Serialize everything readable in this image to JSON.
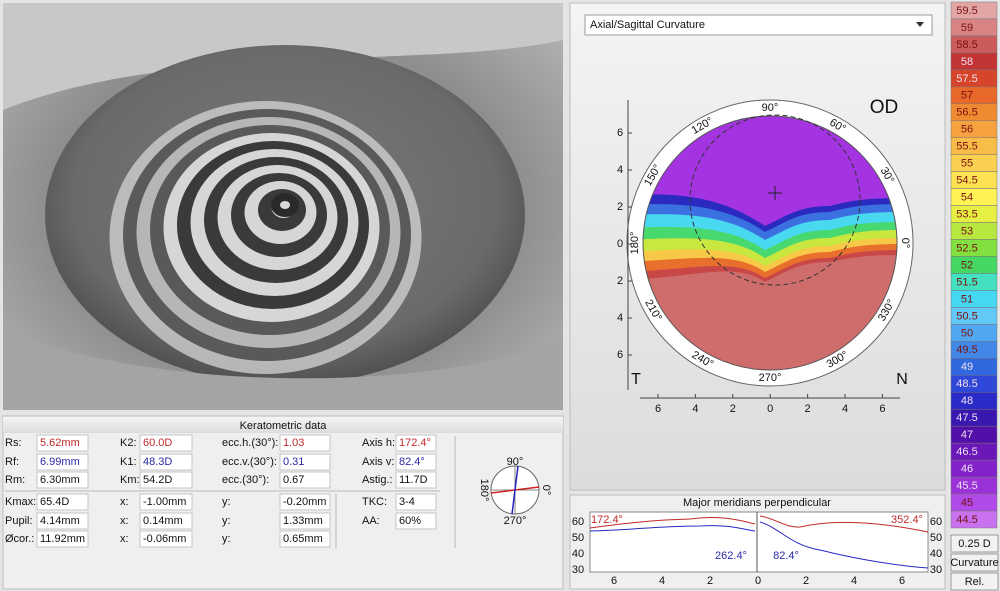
{
  "keratometric": {
    "title": "Keratometric data",
    "rows": [
      [
        {
          "label": "Rs:",
          "value": "5.62mm",
          "tone": "red"
        },
        {
          "label": "K2:",
          "value": "60.0D",
          "tone": "red"
        },
        {
          "label": "ecc.h.(30°):",
          "value": "1.03",
          "tone": "red"
        },
        {
          "label": "Axis h:",
          "value": "172.4°",
          "tone": "red"
        }
      ],
      [
        {
          "label": "Rf:",
          "value": "6.99mm",
          "tone": "blue"
        },
        {
          "label": "K1:",
          "value": "48.3D",
          "tone": "blue"
        },
        {
          "label": "ecc.v.(30°):",
          "value": "0.31",
          "tone": "blue"
        },
        {
          "label": "Axis v:",
          "value": "82.4°",
          "tone": "blue"
        }
      ],
      [
        {
          "label": "Rm:",
          "value": "6.30mm"
        },
        {
          "label": "Km:",
          "value": "54.2D"
        },
        {
          "label": "ecc.(30°):",
          "value": "0.67"
        },
        {
          "label": "Astig.:",
          "value": "11.7D"
        }
      ],
      [
        {
          "label": "Kmax:",
          "value": "65.4D"
        },
        {
          "label": "x:",
          "value": "-1.00mm"
        },
        {
          "label": "y:",
          "value": "-0.20mm"
        },
        {
          "label": "TKC:",
          "value": "3-4"
        }
      ],
      [
        {
          "label": "Pupil:",
          "value": "4.14mm"
        },
        {
          "label": "x:",
          "value": "0.14mm"
        },
        {
          "label": "y:",
          "value": "1.33mm"
        },
        {
          "label": "AA:",
          "value": "60%"
        }
      ],
      [
        {
          "label": "Øcor.:",
          "value": "11.92mm"
        },
        {
          "label": "x:",
          "value": "-0.06mm"
        },
        {
          "label": "y:",
          "value": "0.65mm"
        }
      ]
    ]
  },
  "axis_widget": {
    "top": "90°",
    "left": "180°",
    "right": "0°",
    "bottom": "270°"
  },
  "map": {
    "dropdown": "Axial/Sagittal Curvature",
    "eye": "OD",
    "left_side": "T",
    "right_side": "N",
    "angles": [
      "0°",
      "30°",
      "60°",
      "90°",
      "120°",
      "150°",
      "180°",
      "210°",
      "240°",
      "270°",
      "300°",
      "330°"
    ],
    "yticks": [
      "6",
      "4",
      "2",
      "0",
      "2",
      "4",
      "6"
    ],
    "xticks": [
      "6",
      "4",
      "2",
      "0",
      "2",
      "4",
      "6"
    ]
  },
  "scale": {
    "entries": [
      {
        "label": "59.5",
        "color": "#e2a6a6"
      },
      {
        "label": "59",
        "color": "#d88484"
      },
      {
        "label": "58.5",
        "color": "#cc5c5c"
      },
      {
        "label": "58",
        "color": "#c23434"
      },
      {
        "label": "57.5",
        "color": "#d6442a"
      },
      {
        "label": "57",
        "color": "#e8682a"
      },
      {
        "label": "56.5",
        "color": "#f08a30"
      },
      {
        "label": "56",
        "color": "#f6a240"
      },
      {
        "label": "55.5",
        "color": "#f8bc48"
      },
      {
        "label": "55",
        "color": "#fad050"
      },
      {
        "label": "54.5",
        "color": "#fce252"
      },
      {
        "label": "54",
        "color": "#fef254"
      },
      {
        "label": "53.5",
        "color": "#e6f044"
      },
      {
        "label": "53",
        "color": "#b8e840"
      },
      {
        "label": "52.5",
        "color": "#82e040"
      },
      {
        "label": "52",
        "color": "#44d862"
      },
      {
        "label": "51.5",
        "color": "#44e0c2"
      },
      {
        "label": "51",
        "color": "#44d8f2"
      },
      {
        "label": "50.5",
        "color": "#62c8f8"
      },
      {
        "label": "50",
        "color": "#52a8f0"
      },
      {
        "label": "49.5",
        "color": "#4288e8"
      },
      {
        "label": "49",
        "color": "#3068e0"
      },
      {
        "label": "48.5",
        "color": "#3048d8"
      },
      {
        "label": "48",
        "color": "#2a2ac8"
      },
      {
        "label": "47.5",
        "color": "#3a18b0"
      },
      {
        "label": "47",
        "color": "#5210a8"
      },
      {
        "label": "46.5",
        "color": "#6a18b8"
      },
      {
        "label": "46",
        "color": "#8222c8"
      },
      {
        "label": "45.5",
        "color": "#9a32d8"
      },
      {
        "label": "45",
        "color": "#b04ae8"
      },
      {
        "label": "44.5",
        "color": "#c872f0"
      }
    ],
    "buttons": [
      "0.25 D",
      "Curvature",
      "Rel."
    ]
  },
  "meridians": {
    "title": "Major meridians perpendicular",
    "left_yticks": [
      "60",
      "50",
      "40",
      "30"
    ],
    "right_yticks": [
      "60",
      "50",
      "40",
      "30"
    ],
    "xticks": [
      "6",
      "4",
      "2",
      "0",
      "2",
      "4",
      "6"
    ],
    "labels": [
      {
        "text": "172.4°",
        "tone": "red"
      },
      {
        "text": "352.4°",
        "tone": "red"
      },
      {
        "text": "262.4°",
        "tone": "blue"
      },
      {
        "text": "82.4°",
        "tone": "blue"
      }
    ]
  }
}
